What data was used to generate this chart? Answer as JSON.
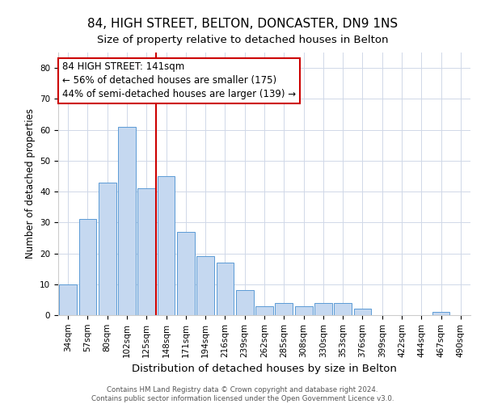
{
  "title": "84, HIGH STREET, BELTON, DONCASTER, DN9 1NS",
  "subtitle": "Size of property relative to detached houses in Belton",
  "xlabel": "Distribution of detached houses by size in Belton",
  "ylabel": "Number of detached properties",
  "bar_color": "#c5d8f0",
  "bar_edge_color": "#5b9bd5",
  "background_color": "#ffffff",
  "grid_color": "#d0d8e8",
  "categories": [
    "34sqm",
    "57sqm",
    "80sqm",
    "102sqm",
    "125sqm",
    "148sqm",
    "171sqm",
    "194sqm",
    "216sqm",
    "239sqm",
    "262sqm",
    "285sqm",
    "308sqm",
    "330sqm",
    "353sqm",
    "376sqm",
    "399sqm",
    "422sqm",
    "444sqm",
    "467sqm",
    "490sqm"
  ],
  "values": [
    10,
    31,
    43,
    61,
    41,
    45,
    27,
    19,
    17,
    8,
    3,
    4,
    3,
    4,
    4,
    2,
    0,
    0,
    0,
    1,
    0
  ],
  "ylim": [
    0,
    85
  ],
  "yticks": [
    0,
    10,
    20,
    30,
    40,
    50,
    60,
    70,
    80
  ],
  "vline_color": "#cc0000",
  "annotation_box_color": "#cc0000",
  "annotation_text": "84 HIGH STREET: 141sqm\n← 56% of detached houses are smaller (175)\n44% of semi-detached houses are larger (139) →",
  "annotation_fontsize": 8.5,
  "footer_line1": "Contains HM Land Registry data © Crown copyright and database right 2024.",
  "footer_line2": "Contains public sector information licensed under the Open Government Licence v3.0.",
  "title_fontsize": 11,
  "subtitle_fontsize": 9.5,
  "xlabel_fontsize": 9.5,
  "ylabel_fontsize": 8.5,
  "tick_fontsize": 7.5
}
